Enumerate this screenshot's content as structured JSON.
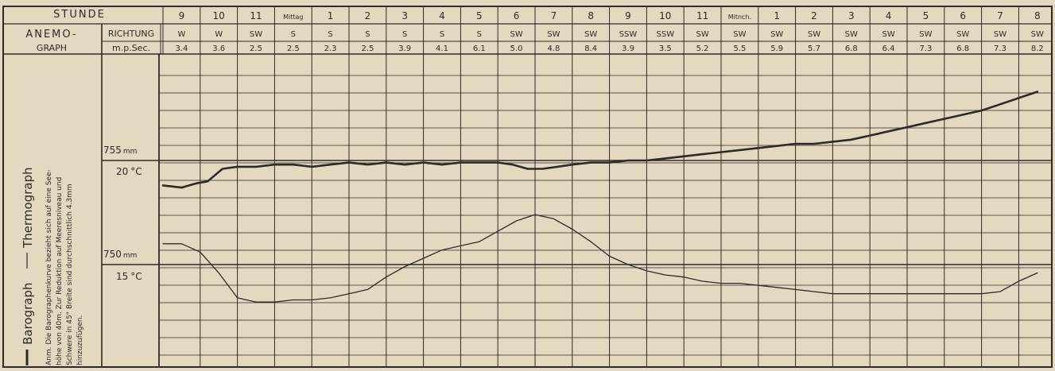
{
  "chart_data": {
    "type": "line",
    "header": {
      "stunde_label": "STUNDE",
      "anemo_label": "ANEMO-",
      "graph_label": "GRAPH",
      "richtung_label": "RICHTUNG",
      "speed_label": "m.p.Sec."
    },
    "hours": [
      "9",
      "10",
      "11",
      "Mittag",
      "1",
      "2",
      "3",
      "4",
      "5",
      "6",
      "7",
      "8",
      "9",
      "10",
      "11",
      "Mitnch.",
      "1",
      "2",
      "3",
      "4",
      "5",
      "6",
      "7",
      "8"
    ],
    "directions": [
      "W",
      "W",
      "SW",
      "S",
      "S",
      "S",
      "S",
      "S",
      "S",
      "SW",
      "SW",
      "SW",
      "SSW",
      "SSW",
      "SW",
      "SW",
      "SW",
      "SW",
      "SW",
      "SW",
      "SW",
      "SW",
      "SW",
      "SW"
    ],
    "speeds": [
      "3.4",
      "3.6",
      "2.5",
      "2.5",
      "2.3",
      "2.5",
      "3.9",
      "4.1",
      "6.1",
      "5.0",
      "4.8",
      "8.4",
      "3.9",
      "3.5",
      "5.2",
      "5.5",
      "5.9",
      "5.7",
      "6.8",
      "6.4",
      "7.3",
      "6.8",
      "7.3",
      "8.2"
    ],
    "axis": {
      "pressure_755": "755",
      "pressure_750": "750",
      "pressure_unit": "mm",
      "temp_20": "20",
      "temp_15": "15",
      "temp_unit": "°C"
    },
    "legend": {
      "barograph": "Barograph",
      "thermograph": "Thermograph"
    },
    "note": {
      "line1": "Anm. Die Barographenkurve bezieht sich auf eine See-",
      "line2": "höhe von 40m. Zur Reduktion auf Meeresniveau und",
      "line3": "Schwere in 45° Breite sind durchschnittlich 4.3mm",
      "line4": "hinzuzufügen."
    },
    "series": [
      {
        "name": "Barograph",
        "unit": "mm",
        "x_hours": [
          0,
          0.5,
          0.9,
          1.2,
          1.6,
          2.0,
          2.5,
          3.0,
          3.5,
          4.0,
          4.5,
          5.0,
          5.5,
          6.0,
          6.5,
          7.0,
          7.5,
          8.0,
          8.5,
          9.0,
          9.4,
          9.8,
          10.2,
          10.6,
          11.0,
          11.5,
          12.0,
          12.5,
          13.0,
          13.5,
          14.0,
          14.5,
          15.0,
          15.5,
          16.0,
          16.5,
          17.0,
          17.5,
          18.0,
          18.5,
          19.0,
          19.5,
          20.0,
          20.5,
          21.0,
          21.5,
          22.0,
          22.5,
          23.0,
          23.5
        ],
        "values": [
          753.8,
          753.7,
          753.9,
          754.0,
          754.6,
          754.7,
          754.7,
          754.8,
          754.8,
          754.7,
          754.8,
          754.9,
          754.8,
          754.9,
          754.8,
          754.9,
          754.8,
          754.9,
          754.9,
          754.9,
          754.8,
          754.6,
          754.6,
          754.7,
          754.8,
          754.9,
          754.9,
          755.0,
          755.0,
          755.1,
          755.2,
          755.3,
          755.4,
          755.5,
          755.6,
          755.7,
          755.8,
          755.8,
          755.9,
          756.0,
          756.2,
          756.4,
          756.6,
          756.8,
          757.0,
          757.2,
          757.4,
          757.7,
          758.0,
          758.3
        ]
      },
      {
        "name": "Thermograph",
        "unit": "°C",
        "x_hours": [
          0,
          0.5,
          1.0,
          1.5,
          2.0,
          2.5,
          3.0,
          3.5,
          4.0,
          4.5,
          5.0,
          5.5,
          6.0,
          6.5,
          7.0,
          7.5,
          8.0,
          8.5,
          9.0,
          9.5,
          10.0,
          10.5,
          11.0,
          11.5,
          12.0,
          12.5,
          13.0,
          13.5,
          14.0,
          14.5,
          15.0,
          15.5,
          16.0,
          16.5,
          17.0,
          17.5,
          18.0,
          18.5,
          19.0,
          19.5,
          20.0,
          20.5,
          21.0,
          21.5,
          22.0,
          22.5,
          23.0,
          23.5
        ],
        "values": [
          16.0,
          16.0,
          15.6,
          14.6,
          13.4,
          13.2,
          13.2,
          13.3,
          13.3,
          13.4,
          13.6,
          13.8,
          14.4,
          14.9,
          15.3,
          15.7,
          15.9,
          16.1,
          16.6,
          17.1,
          17.4,
          17.2,
          16.7,
          16.1,
          15.4,
          15.0,
          14.7,
          14.5,
          14.4,
          14.2,
          14.1,
          14.1,
          14.0,
          13.9,
          13.8,
          13.7,
          13.6,
          13.6,
          13.6,
          13.6,
          13.6,
          13.6,
          13.6,
          13.6,
          13.6,
          13.7,
          14.2,
          14.6
        ]
      }
    ]
  }
}
